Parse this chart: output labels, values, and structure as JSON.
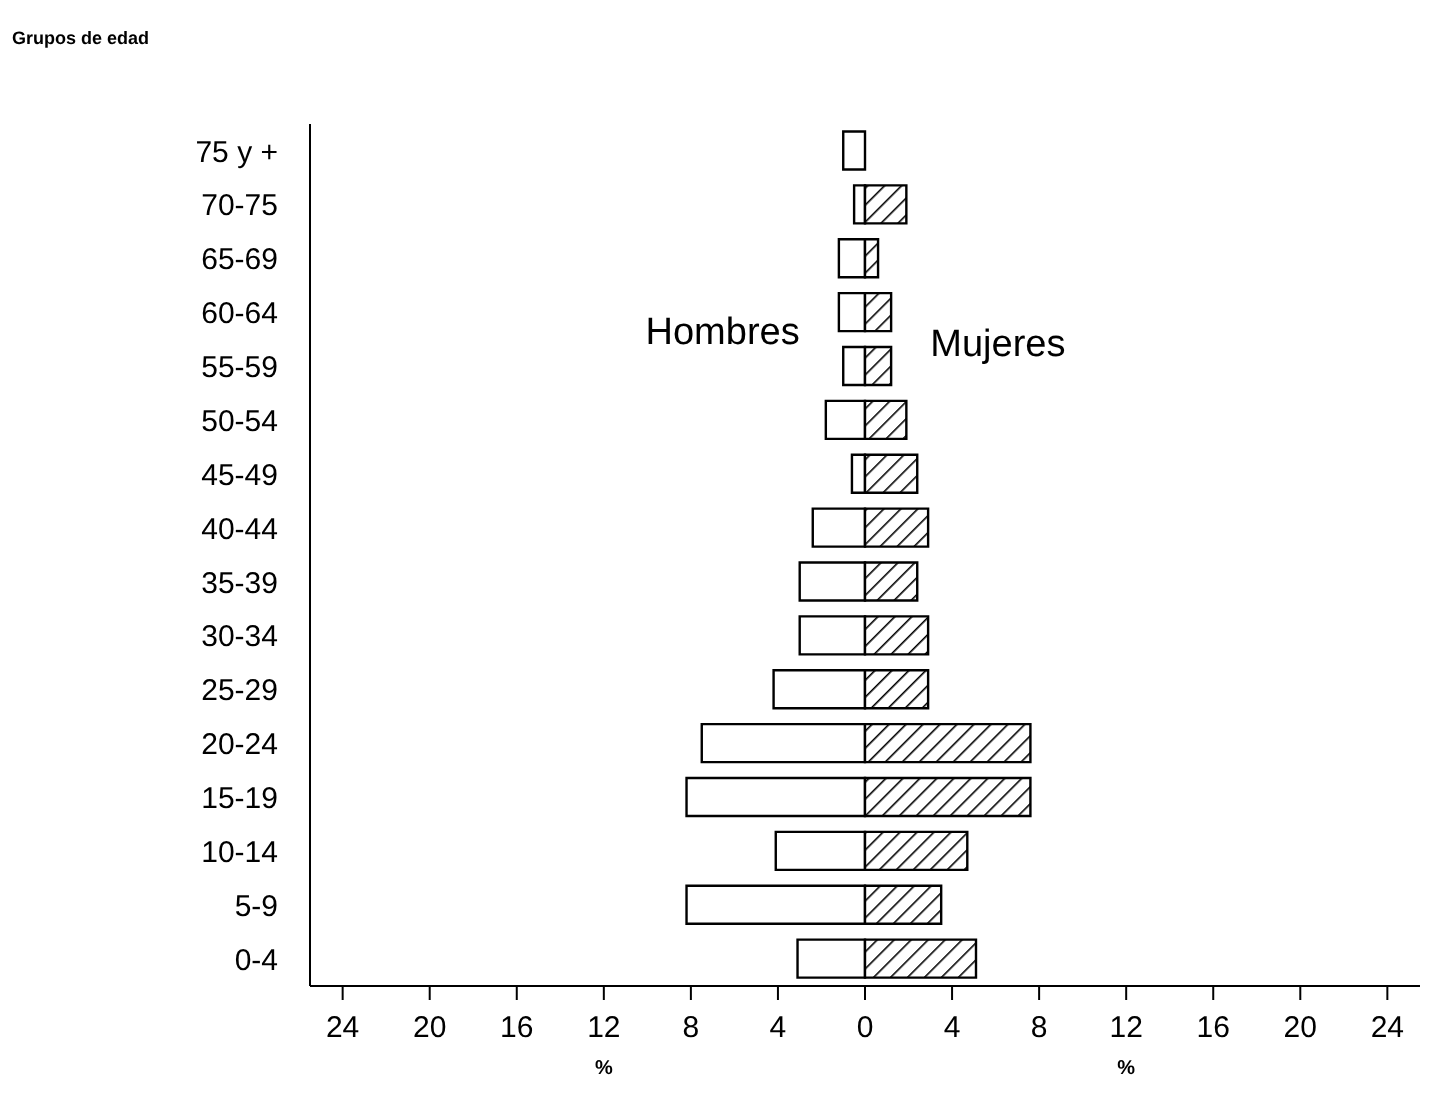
{
  "chart_data": {
    "type": "bar",
    "orientation": "horizontal",
    "stacked": true,
    "ylabel": "Grupos de edad",
    "xlabel": "%",
    "categories": [
      "75 y +",
      "70-75",
      "65-69",
      "60-64",
      "55-59",
      "50-54",
      "45-49",
      "40-44",
      "35-39",
      "30-34",
      "25-29",
      "20-24",
      "15-19",
      "10-14",
      "5-9",
      "0-4"
    ],
    "series": [
      {
        "name": "Hombres",
        "color": "#ffffff",
        "values": [
          -1.0,
          -0.5,
          -1.2,
          -1.2,
          -1.0,
          -1.8,
          -0.6,
          -2.4,
          -3.0,
          -3.0,
          -4.2,
          -7.5,
          -8.2,
          -4.1,
          -8.2,
          -3.1
        ]
      },
      {
        "name": "Mujeres",
        "color": "#000000",
        "values": [
          0,
          1.9,
          0.6,
          1.2,
          1.2,
          1.9,
          2.4,
          2.9,
          2.4,
          2.9,
          2.9,
          7.6,
          7.6,
          4.7,
          3.5,
          5.1
        ]
      }
    ],
    "xlim": [
      -25.5,
      25.5
    ],
    "xticks": [
      {
        "value": -24,
        "label": "24"
      },
      {
        "value": -20,
        "label": "20"
      },
      {
        "value": -16,
        "label": "16"
      },
      {
        "value": -12,
        "label": "12"
      },
      {
        "value": -8,
        "label": "8"
      },
      {
        "value": -4,
        "label": "4"
      },
      0,
      4,
      8,
      12,
      16,
      20,
      24
    ],
    "tick_labels": true
  }
}
